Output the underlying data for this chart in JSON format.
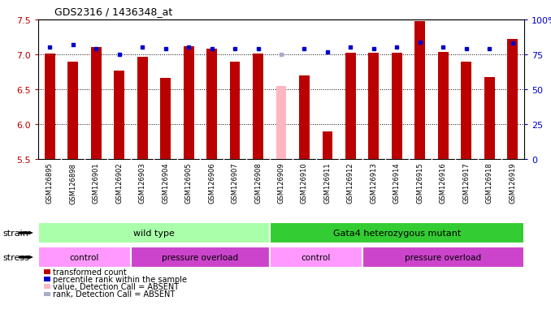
{
  "title": "GDS2316 / 1436348_at",
  "samples": [
    "GSM126895",
    "GSM126898",
    "GSM126901",
    "GSM126902",
    "GSM126903",
    "GSM126904",
    "GSM126905",
    "GSM126906",
    "GSM126907",
    "GSM126908",
    "GSM126909",
    "GSM126910",
    "GSM126911",
    "GSM126912",
    "GSM126913",
    "GSM126914",
    "GSM126915",
    "GSM126916",
    "GSM126917",
    "GSM126918",
    "GSM126919"
  ],
  "bar_values": [
    7.01,
    6.9,
    7.1,
    6.77,
    6.96,
    6.66,
    7.12,
    7.08,
    6.89,
    7.01,
    6.55,
    6.7,
    5.9,
    7.02,
    7.02,
    7.02,
    7.48,
    7.04,
    6.89,
    6.68,
    7.22
  ],
  "bar_absent": [
    false,
    false,
    false,
    false,
    false,
    false,
    false,
    false,
    false,
    false,
    true,
    false,
    false,
    false,
    false,
    false,
    false,
    false,
    false,
    false,
    false
  ],
  "percentile_values": [
    80,
    82,
    79,
    75,
    80,
    79,
    80,
    79,
    79,
    79,
    75,
    79,
    77,
    80,
    79,
    80,
    84,
    80,
    79,
    79,
    83
  ],
  "percentile_absent": [
    false,
    false,
    false,
    false,
    false,
    false,
    false,
    false,
    false,
    false,
    true,
    false,
    false,
    false,
    false,
    false,
    false,
    false,
    false,
    false,
    false
  ],
  "ylim": [
    5.5,
    7.5
  ],
  "ylim_right": [
    0,
    100
  ],
  "yticks_left": [
    5.5,
    6.0,
    6.5,
    7.0,
    7.5
  ],
  "yticks_right": [
    0,
    25,
    50,
    75,
    100
  ],
  "bar_color": "#BB0000",
  "bar_absent_color": "#FFB6C1",
  "dot_color": "#0000CC",
  "dot_absent_color": "#AAAACC",
  "strain_wt_color": "#AAFFAA",
  "strain_mut_color": "#33CC33",
  "stress_control_color": "#FF99FF",
  "stress_overload_color": "#CC44CC",
  "stress_groups": [
    {
      "label": "control",
      "start": 0,
      "end": 3
    },
    {
      "label": "pressure overload",
      "start": 4,
      "end": 9
    },
    {
      "label": "control",
      "start": 10,
      "end": 13
    },
    {
      "label": "pressure overload",
      "start": 14,
      "end": 20
    }
  ],
  "legend_items": [
    {
      "label": "transformed count",
      "color": "#BB0000"
    },
    {
      "label": "percentile rank within the sample",
      "color": "#0000CC"
    },
    {
      "label": "value, Detection Call = ABSENT",
      "color": "#FFB6C1"
    },
    {
      "label": "rank, Detection Call = ABSENT",
      "color": "#AAAACC"
    }
  ],
  "xtick_bg_color": "#C8C8C8"
}
